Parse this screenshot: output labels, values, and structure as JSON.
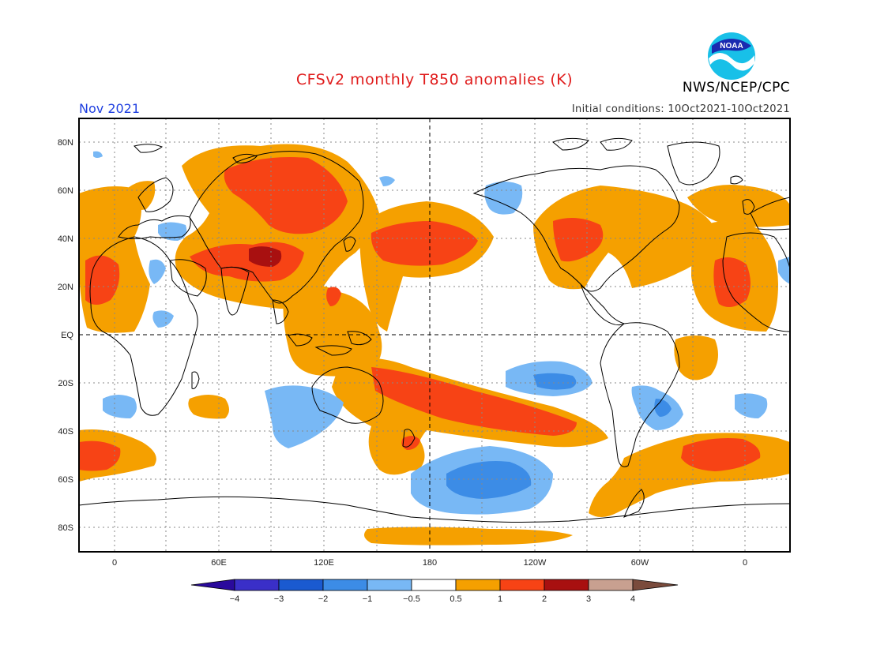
{
  "header": {
    "title": "CFSv2 monthly T850 anomalies (K)",
    "month": "Nov 2021",
    "initial_conditions": "Initial conditions: 10Oct2021-10Oct2021",
    "agency": "NWS/NCEP/CPC",
    "logo_text": "NOAA"
  },
  "colors": {
    "title": "#e01c1c",
    "month": "#2040e0",
    "warm_1": "#f5a000",
    "warm_2": "#f74315",
    "warm_3": "#a81010",
    "cool_1": "#78b8f5",
    "cool_2": "#3c8ce6",
    "cool_3": "#1a5ad0",
    "cool_4": "#3a2fc8",
    "cool_5": "#2a0a9c",
    "neutral": "#ffffff",
    "hot_4": "#c8a090",
    "hot_5": "#7a4b3c"
  },
  "axes": {
    "lat_labels": [
      "80N",
      "60N",
      "40N",
      "20N",
      "EQ",
      "20S",
      "40S",
      "60S",
      "80S"
    ],
    "lon_labels": [
      "0",
      "60E",
      "120E",
      "180",
      "120W",
      "60W",
      "0"
    ]
  },
  "colorbar": {
    "labels": [
      "−4",
      "−3",
      "−2",
      "−1",
      "−0.5",
      "0.5",
      "1",
      "2",
      "3",
      "4"
    ]
  },
  "map": {
    "warm_regions": [
      "Siberia and Central Asia",
      "Tibetan Plateau",
      "North Africa",
      "Western Europe",
      "North Pacific",
      "Western North America",
      "Eastern North America",
      "Subtropical North Atlantic",
      "South Pacific Convergence Zone",
      "South Atlantic",
      "South Indian Ocean"
    ],
    "cool_regions": [
      "Central South Pacific",
      "Southern Ocean south of New Zealand",
      "Southern Indian Ocean",
      "Southern Brazil",
      "Alaska"
    ]
  }
}
